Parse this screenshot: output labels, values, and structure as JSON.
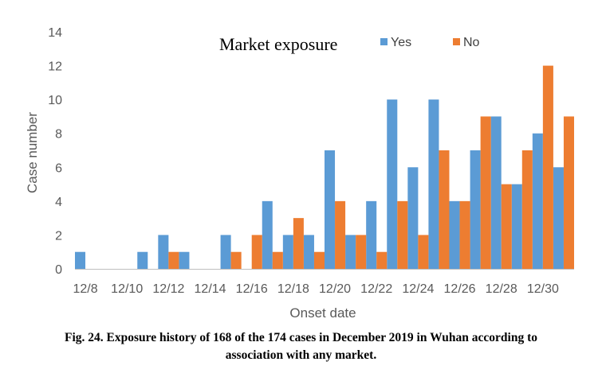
{
  "chart_data": {
    "type": "bar",
    "legend_title": "Market exposure",
    "xlabel": "Onset date",
    "ylabel": "Case number",
    "ylim": [
      0,
      14
    ],
    "yticks": [
      0,
      2,
      4,
      6,
      8,
      10,
      12,
      14
    ],
    "xtick_labels": [
      "12/8",
      "12/10",
      "12/12",
      "12/14",
      "12/16",
      "12/18",
      "12/20",
      "12/22",
      "12/24",
      "12/26",
      "12/28",
      "12/30"
    ],
    "categories": [
      "12/8",
      "12/9",
      "12/10",
      "12/11",
      "12/12",
      "12/13",
      "12/14",
      "12/15",
      "12/16",
      "12/17",
      "12/18",
      "12/19",
      "12/20",
      "12/21",
      "12/22",
      "12/23",
      "12/24",
      "12/25",
      "12/26",
      "12/27",
      "12/28",
      "12/29",
      "12/30",
      "12/31"
    ],
    "series": [
      {
        "name": "Yes",
        "color": "#5B9BD5",
        "values": [
          1,
          0,
          0,
          1,
          2,
          1,
          0,
          2,
          0,
          4,
          2,
          2,
          7,
          2,
          4,
          10,
          6,
          10,
          4,
          7,
          9,
          5,
          8,
          6
        ]
      },
      {
        "name": "No",
        "color": "#ED7D31",
        "values": [
          0,
          0,
          0,
          0,
          1,
          0,
          0,
          1,
          2,
          1,
          3,
          1,
          4,
          2,
          1,
          4,
          2,
          7,
          4,
          9,
          5,
          7,
          12,
          9
        ]
      }
    ],
    "legend_position": "top-right",
    "grid": false
  },
  "caption": {
    "line1": "Fig. 24. Exposure history of 168 of the 174 cases in December 2019 in Wuhan according to",
    "line2": "association with any market."
  }
}
